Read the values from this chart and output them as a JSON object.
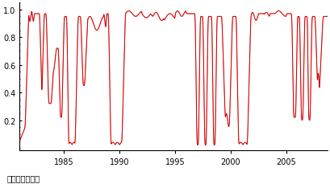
{
  "title": "",
  "xlabel": "",
  "ylabel": "",
  "xlim": [
    1981.0,
    2008.7
  ],
  "ylim": [
    -0.02,
    1.05
  ],
  "yticks": [
    0.2,
    0.4,
    0.6,
    0.8,
    1.0
  ],
  "xticks": [
    1985,
    1990,
    1995,
    2000,
    2005
  ],
  "line1_color": "#FF8888",
  "line2_color": "#CC0000",
  "line_width": 0.7,
  "source_text": "出所：筆者作成",
  "source_fontsize": 7,
  "background_color": "#ffffff"
}
